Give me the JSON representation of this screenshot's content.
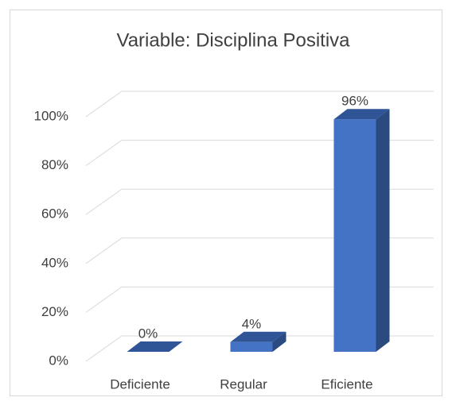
{
  "chart_data": {
    "type": "bar3d",
    "title": "Variable: Disciplina Positiva",
    "categories": [
      "Deficiente",
      "Regular",
      "Eficiente"
    ],
    "values": [
      0,
      4,
      96
    ],
    "value_labels": [
      "0%",
      "4%",
      "96%"
    ],
    "color": "#4472c4",
    "ylim": [
      0,
      100
    ],
    "yticks": [
      {
        "value": 0,
        "label": "0%"
      },
      {
        "value": 20,
        "label": "20%"
      },
      {
        "value": 40,
        "label": "40%"
      },
      {
        "value": 60,
        "label": "60%"
      },
      {
        "value": 80,
        "label": "80%"
      },
      {
        "value": 100,
        "label": "100%"
      }
    ],
    "grid": true
  }
}
